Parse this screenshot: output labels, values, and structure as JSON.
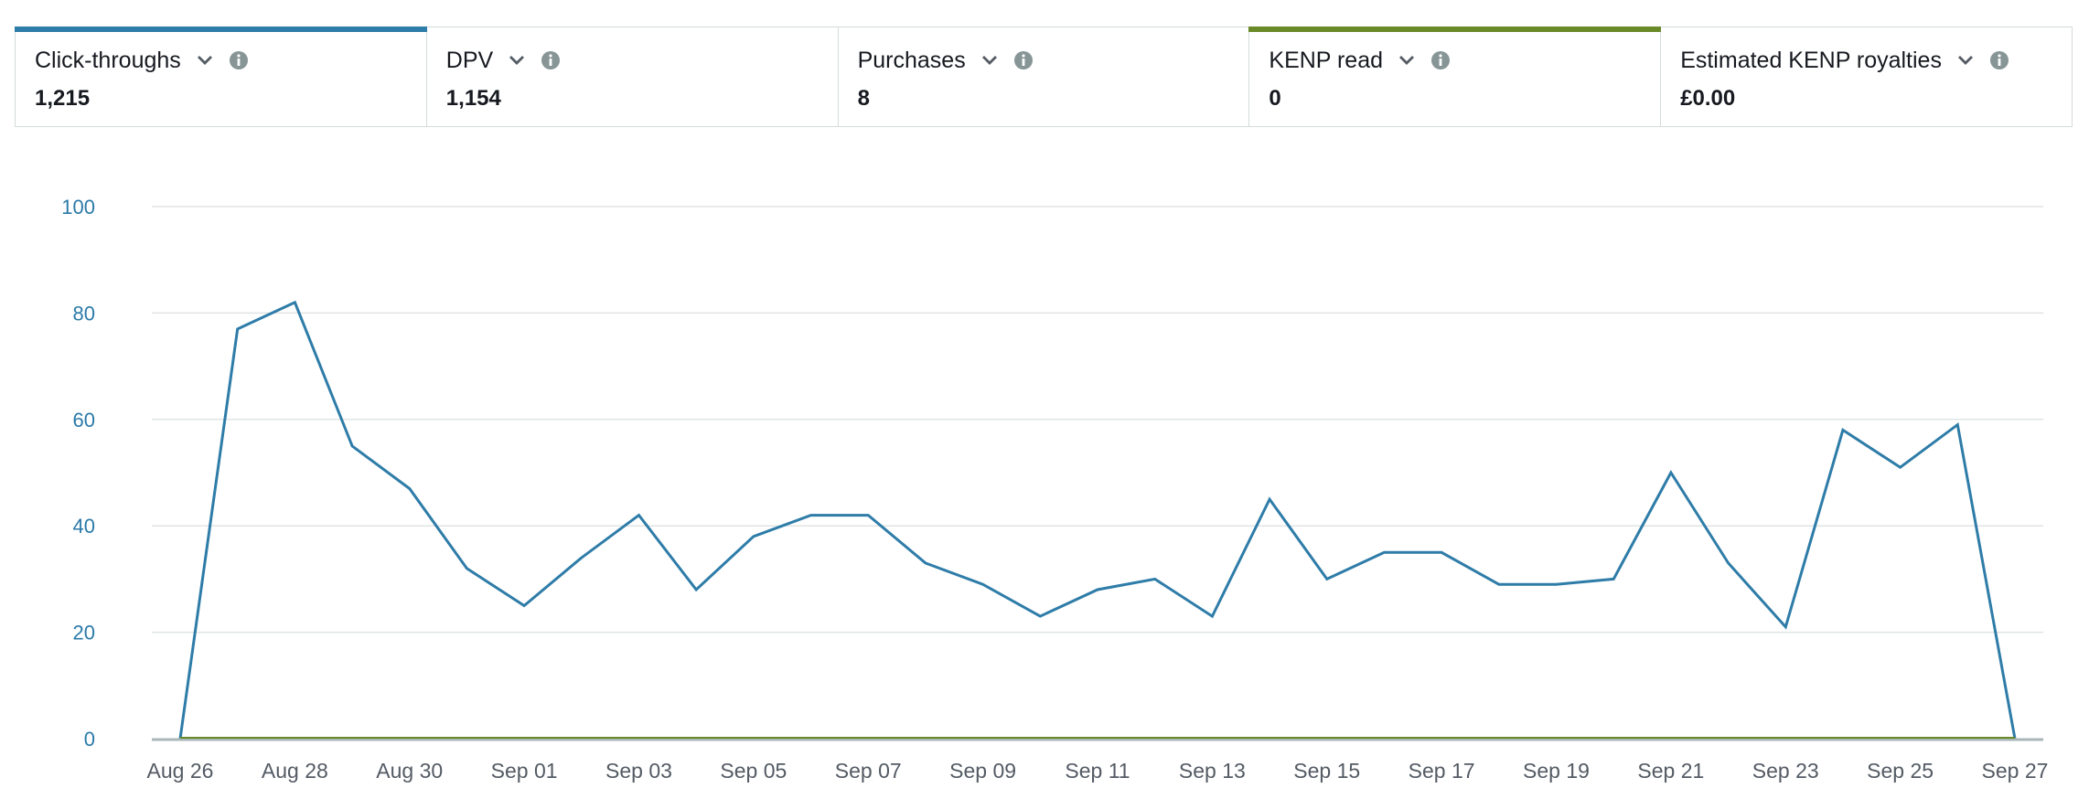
{
  "metrics": [
    {
      "label": "Click-throughs",
      "value": "1,215",
      "accent": "#2e7ca8",
      "chevron_icon": "chevron-down-icon",
      "info_icon": "info-icon"
    },
    {
      "label": "DPV",
      "value": "1,154",
      "accent": "",
      "chevron_icon": "chevron-down-icon",
      "info_icon": "info-icon"
    },
    {
      "label": "Purchases",
      "value": "8",
      "accent": "",
      "chevron_icon": "chevron-down-icon",
      "info_icon": "info-icon"
    },
    {
      "label": "KENP read",
      "value": "0",
      "accent": "#6a8a2a",
      "chevron_icon": "chevron-down-icon",
      "info_icon": "info-icon"
    },
    {
      "label": "Estimated KENP royalties",
      "value": "£0.00",
      "accent": "",
      "chevron_icon": "chevron-down-icon",
      "info_icon": "info-icon"
    }
  ],
  "chart_data": {
    "type": "line",
    "title": "",
    "xlabel": "",
    "ylabel": "",
    "ylim": [
      0,
      100
    ],
    "yticks": [
      "0",
      "20",
      "40",
      "60",
      "80",
      "100"
    ],
    "grid": true,
    "x_tick_labels": [
      "Aug 26",
      "Aug 28",
      "Aug 30",
      "Sep 01",
      "Sep 03",
      "Sep 05",
      "Sep 07",
      "Sep 09",
      "Sep 11",
      "Sep 13",
      "Sep 15",
      "Sep 17",
      "Sep 19",
      "Sep 21",
      "Sep 23",
      "Sep 25",
      "Sep 27"
    ],
    "x": [
      "Aug 26",
      "Aug 27",
      "Aug 28",
      "Aug 29",
      "Aug 30",
      "Aug 31",
      "Sep 01",
      "Sep 02",
      "Sep 03",
      "Sep 04",
      "Sep 05",
      "Sep 06",
      "Sep 07",
      "Sep 08",
      "Sep 09",
      "Sep 10",
      "Sep 11",
      "Sep 12",
      "Sep 13",
      "Sep 14",
      "Sep 15",
      "Sep 16",
      "Sep 17",
      "Sep 18",
      "Sep 19",
      "Sep 20",
      "Sep 21",
      "Sep 22",
      "Sep 23",
      "Sep 24",
      "Sep 25",
      "Sep 26",
      "Sep 27"
    ],
    "series": [
      {
        "metric": "Click-throughs",
        "color": "#2e7ca8",
        "values": [
          0,
          77,
          82,
          55,
          47,
          32,
          25,
          34,
          42,
          28,
          38,
          42,
          42,
          33,
          29,
          23,
          28,
          30,
          23,
          45,
          30,
          35,
          35,
          29,
          29,
          30,
          50,
          33,
          21,
          58,
          51,
          59,
          0
        ]
      },
      {
        "metric": "KENP read",
        "color": "#6a8a2a",
        "values": [
          0,
          0,
          0,
          0,
          0,
          0,
          0,
          0,
          0,
          0,
          0,
          0,
          0,
          0,
          0,
          0,
          0,
          0,
          0,
          0,
          0,
          0,
          0,
          0,
          0,
          0,
          0,
          0,
          0,
          0,
          0,
          0,
          0
        ]
      }
    ],
    "baseline_color": "#aab7b8",
    "grid_color": "#e1e4e5"
  }
}
